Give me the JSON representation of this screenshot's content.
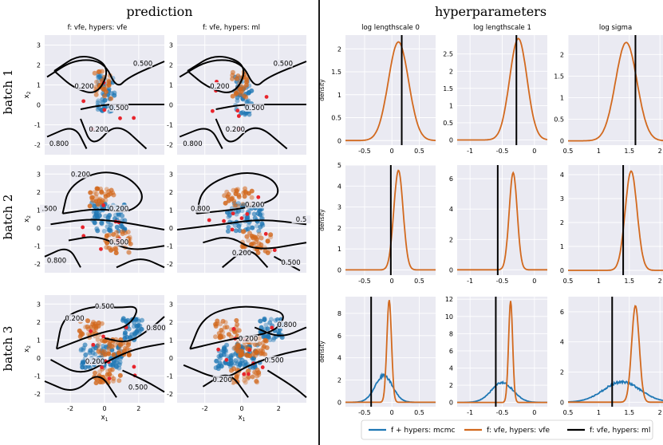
{
  "left_title": "prediction",
  "right_title": "hyperparameters",
  "pred_col_titles": [
    "f: vfe, hypers: vfe",
    "f: vfe, hypers: ml"
  ],
  "batch_labels": [
    "batch 1",
    "batch 2",
    "batch 3"
  ],
  "pred_xlabel": "x",
  "pred_xlabel_sub": "1",
  "pred_ylabel": "x",
  "pred_ylabel_sub": "2",
  "hyper_col_titles": [
    "log lengthscale 0",
    "log lengthscale 1",
    "log sigma"
  ],
  "density_label": "density",
  "legend": [
    {
      "label": "f + hypers: mcmc",
      "color": "#1f77b4"
    },
    {
      "label": "f: vfe, hypers: vfe",
      "color": "#d2691e"
    },
    {
      "label": "f: vfe, hypers: ml",
      "color": "#000000"
    }
  ],
  "colors": {
    "panel_bg": "#eaeaf2",
    "grid": "#ffffff",
    "blue": "#1f77b4",
    "orange": "#d2691e",
    "red": "#e8242c"
  },
  "chart_data": {
    "prediction": {
      "type": "scatter",
      "x_ticks": [
        -2,
        0,
        2
      ],
      "y_ticks": [
        3,
        2,
        1,
        0,
        -1,
        -2
      ],
      "xlim": [
        -3.5,
        3.5
      ],
      "ylim": [
        -2.5,
        3.5
      ],
      "panels": [
        {
          "batch": 1,
          "method": "f: vfe, hypers: vfe",
          "contour_labels": [
            "0.500",
            "0.200",
            "0.500",
            "0.200",
            "0.800"
          ]
        },
        {
          "batch": 1,
          "method": "f: vfe, hypers: ml",
          "contour_labels": [
            "0.500",
            "0.200",
            "0.500",
            "0.200",
            "0.800"
          ]
        },
        {
          "batch": 2,
          "method": "f: vfe, hypers: vfe",
          "contour_labels": [
            "0.200",
            "0.200",
            ".500",
            "0.500",
            "0.800"
          ]
        },
        {
          "batch": 2,
          "method": "f: vfe, hypers: ml",
          "contour_labels": [
            "0.200",
            "0.800",
            "0.5",
            "0.200",
            "0.500"
          ]
        },
        {
          "batch": 3,
          "method": "f: vfe, hypers: vfe",
          "contour_labels": [
            "0.500",
            "0.200",
            "0.800",
            "0.200",
            "0.500"
          ]
        },
        {
          "batch": 3,
          "method": "f: vfe, hypers: ml",
          "contour_labels": [
            "0.800",
            "0.200",
            "0.200",
            "0.500"
          ]
        }
      ]
    },
    "hyperparameters": {
      "type": "line",
      "panels": [
        {
          "row": 1,
          "param": "log lengthscale 0",
          "xlim": [
            -0.85,
            0.8
          ],
          "x_ticks": [
            -0.5,
            0.0,
            0.5
          ],
          "ylim": [
            -0.1,
            2.3
          ],
          "y_ticks": [
            0.0,
            0.5,
            1.0,
            1.5,
            2.0
          ],
          "ml": 0.18,
          "vfe_mu": 0.12,
          "vfe_sd": 0.185,
          "vfe_peak": 2.15
        },
        {
          "row": 1,
          "param": "log lengthscale 1",
          "xlim": [
            -1.2,
            0.2
          ],
          "x_ticks": [
            -1.0,
            -0.5,
            0.0
          ],
          "ylim": [
            -0.15,
            3.05
          ],
          "y_ticks": [
            0.0,
            0.5,
            1.0,
            1.5,
            2.0,
            2.5
          ],
          "ml": -0.28,
          "vfe_mu": -0.25,
          "vfe_sd": 0.135,
          "vfe_peak": 2.95
        },
        {
          "row": 1,
          "param": "log sigma",
          "xlim": [
            0.5,
            2.05
          ],
          "x_ticks": [
            0.5,
            1.0,
            1.5,
            2.0
          ],
          "ylim": [
            -0.1,
            2.45
          ],
          "y_ticks": [
            0.0,
            0.5,
            1.0,
            1.5,
            2.0
          ],
          "ml": 1.6,
          "vfe_mu": 1.45,
          "vfe_sd": 0.175,
          "vfe_peak": 2.28
        },
        {
          "row": 2,
          "param": "log lengthscale 0",
          "xlim": [
            -0.85,
            0.8
          ],
          "x_ticks": [
            -0.5,
            0.0,
            0.5
          ],
          "ylim": [
            -0.25,
            5.0
          ],
          "y_ticks": [
            0,
            1,
            2,
            3,
            4,
            5
          ],
          "ml": -0.02,
          "vfe_mu": 0.12,
          "vfe_sd": 0.085,
          "vfe_peak": 4.75
        },
        {
          "row": 2,
          "param": "log lengthscale 1",
          "xlim": [
            -1.2,
            0.2
          ],
          "x_ticks": [
            -1.0,
            -0.5,
            0.0
          ],
          "ylim": [
            -0.35,
            6.9
          ],
          "y_ticks": [
            0,
            2,
            4,
            6
          ],
          "ml": -0.57,
          "vfe_mu": -0.33,
          "vfe_sd": 0.062,
          "vfe_peak": 6.4
        },
        {
          "row": 2,
          "param": "log sigma",
          "xlim": [
            0.5,
            2.05
          ],
          "x_ticks": [
            0.5,
            1.0,
            1.5,
            2.0
          ],
          "ylim": [
            -0.2,
            4.4
          ],
          "y_ticks": [
            0,
            1,
            2,
            3,
            4
          ],
          "ml": 1.4,
          "vfe_mu": 1.53,
          "vfe_sd": 0.097,
          "vfe_peak": 4.15
        },
        {
          "row": 3,
          "param": "log lengthscale 0",
          "xlim": [
            -0.85,
            0.8
          ],
          "x_ticks": [
            -0.5,
            0.0,
            0.5
          ],
          "ylim": [
            -0.4,
            9.5
          ],
          "y_ticks": [
            0,
            2,
            4,
            6,
            8
          ],
          "ml": -0.38,
          "vfe_mu": -0.05,
          "vfe_sd": 0.043,
          "vfe_peak": 9.2,
          "mcmc_mu": -0.15,
          "mcmc_sd": 0.16,
          "mcmc_peak": 2.4
        },
        {
          "row": 3,
          "param": "log lengthscale 1",
          "xlim": [
            -1.2,
            0.2
          ],
          "x_ticks": [
            -1.0,
            -0.5,
            0.0
          ],
          "ylim": [
            -0.5,
            12.3
          ],
          "y_ticks": [
            0,
            2,
            4,
            6,
            8,
            10,
            12
          ],
          "ml": -0.6,
          "vfe_mu": -0.37,
          "vfe_sd": 0.032,
          "vfe_peak": 11.8,
          "mcmc_mu": -0.5,
          "mcmc_sd": 0.17,
          "mcmc_peak": 2.3
        },
        {
          "row": 3,
          "param": "log sigma",
          "xlim": [
            0.5,
            2.05
          ],
          "x_ticks": [
            0.5,
            1.0,
            1.5,
            2.0
          ],
          "ylim": [
            -0.3,
            7.0
          ],
          "y_ticks": [
            0,
            2,
            4,
            6
          ],
          "ml": 1.22,
          "vfe_mu": 1.6,
          "vfe_sd": 0.062,
          "vfe_peak": 6.4,
          "mcmc_mu": 1.38,
          "mcmc_sd": 0.3,
          "mcmc_peak": 1.35
        }
      ]
    }
  }
}
